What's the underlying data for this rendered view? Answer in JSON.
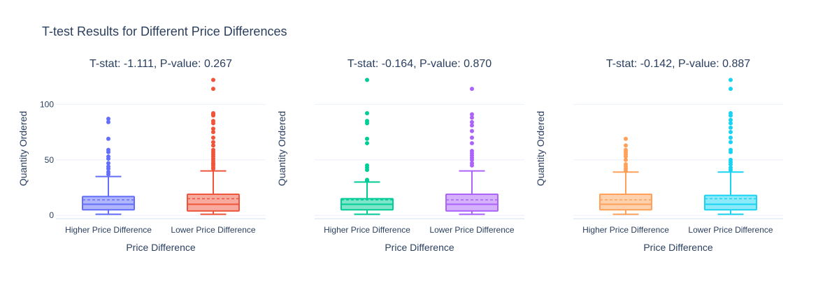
{
  "chart_data": [
    {
      "type": "box",
      "title": "T-test Results for Different Price Differences",
      "subplot_title": "T-stat: -1.111, P-value: 0.267",
      "xlabel": "Price Difference",
      "ylabel": "Quantity Ordered",
      "ylim": [
        -3,
        126
      ],
      "yticks": [
        0,
        50,
        100
      ],
      "categories": [
        "Higher Price Difference",
        "Lower Price Difference"
      ],
      "series": [
        {
          "color": "#636efa",
          "min": 1,
          "q1": 5,
          "median": 10,
          "q3": 17,
          "max": 35,
          "mean": 14,
          "outliers": [
            37,
            39,
            42,
            44,
            47,
            51,
            53,
            57,
            59,
            69,
            84,
            87
          ]
        },
        {
          "color": "#ef553b",
          "min": 1,
          "q1": 4,
          "median": 10,
          "q3": 19,
          "max": 40,
          "mean": 15,
          "outliers": [
            42,
            43,
            45,
            46,
            47,
            49,
            51,
            53,
            55,
            57,
            59,
            63,
            66,
            70,
            75,
            78,
            83,
            85,
            90,
            91,
            92,
            114,
            122
          ]
        }
      ]
    },
    {
      "type": "box",
      "subplot_title": "T-stat: -0.164, P-value: 0.870",
      "xlabel": "Price Difference",
      "ylabel": "Quantity Ordered",
      "ylim": [
        -3,
        126
      ],
      "categories": [
        "Higher Price Difference",
        "Lower Price Difference"
      ],
      "series": [
        {
          "color": "#00cc96",
          "min": 1,
          "q1": 5,
          "median": 10,
          "q3": 15,
          "max": 30,
          "mean": 14,
          "outliers": [
            31,
            32,
            41,
            43,
            45,
            65,
            69,
            83,
            85,
            92,
            122
          ]
        },
        {
          "color": "#ab63fa",
          "min": 1,
          "q1": 4,
          "median": 10,
          "q3": 19,
          "max": 40,
          "mean": 14,
          "outliers": [
            45,
            47,
            50,
            52,
            54,
            56,
            58,
            65,
            70,
            76,
            81,
            84,
            88,
            91,
            114
          ]
        }
      ]
    },
    {
      "type": "box",
      "subplot_title": "T-stat: -0.142, P-value: 0.887",
      "xlabel": "Price Difference",
      "ylabel": "Quantity Ordered",
      "ylim": [
        -3,
        126
      ],
      "categories": [
        "Higher Price Difference",
        "Lower Price Difference"
      ],
      "series": [
        {
          "color": "#ffa15a",
          "min": 1,
          "q1": 5,
          "median": 10,
          "q3": 19,
          "max": 39,
          "mean": 14,
          "outliers": [
            40,
            42,
            44,
            46,
            50,
            53,
            55,
            57,
            59,
            63,
            69
          ]
        },
        {
          "color": "#19d3f3",
          "min": 1,
          "q1": 5,
          "median": 10,
          "q3": 18,
          "max": 39,
          "mean": 15,
          "outliers": [
            41,
            43,
            46,
            48,
            50,
            57,
            59,
            66,
            70,
            75,
            79,
            83,
            86,
            90,
            92,
            114,
            122
          ]
        }
      ]
    }
  ]
}
